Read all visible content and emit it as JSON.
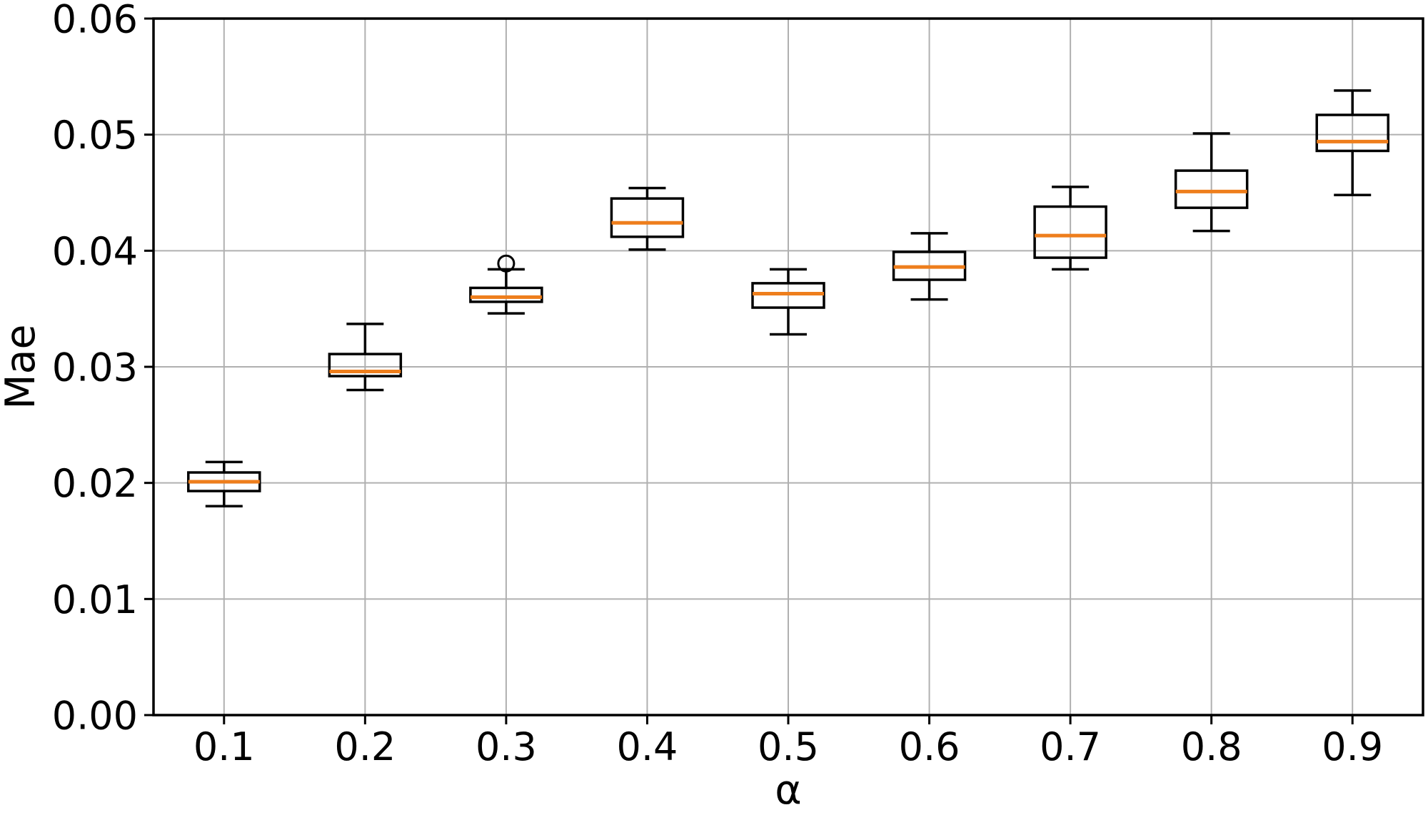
{
  "chart_data": {
    "type": "boxplot",
    "title": "",
    "xlabel": "α",
    "ylabel": "Mae",
    "categories": [
      "0.1",
      "0.2",
      "0.3",
      "0.4",
      "0.5",
      "0.6",
      "0.7",
      "0.8",
      "0.9"
    ],
    "ylim": [
      0.0,
      0.06
    ],
    "ytick_step": 0.01,
    "yticks": [
      "0.00",
      "0.01",
      "0.02",
      "0.03",
      "0.04",
      "0.05",
      "0.06"
    ],
    "grid": true,
    "legend": "none",
    "colors": {
      "median": "#ee7e1c",
      "box_line": "#000000",
      "grid": "#b0b0b0",
      "background": "#ffffff"
    },
    "boxes": [
      {
        "label": "0.1",
        "whislo": 0.018,
        "q1": 0.0193,
        "med": 0.0201,
        "q3": 0.0209,
        "whishi": 0.0218,
        "fliers": []
      },
      {
        "label": "0.2",
        "whislo": 0.028,
        "q1": 0.0292,
        "med": 0.0296,
        "q3": 0.0311,
        "whishi": 0.0337,
        "fliers": []
      },
      {
        "label": "0.3",
        "whislo": 0.0346,
        "q1": 0.0356,
        "med": 0.036,
        "q3": 0.0368,
        "whishi": 0.0384,
        "fliers": [
          0.0389
        ]
      },
      {
        "label": "0.4",
        "whislo": 0.0401,
        "q1": 0.0412,
        "med": 0.0424,
        "q3": 0.0445,
        "whishi": 0.0454,
        "fliers": []
      },
      {
        "label": "0.5",
        "whislo": 0.0328,
        "q1": 0.0351,
        "med": 0.0363,
        "q3": 0.0372,
        "whishi": 0.0384,
        "fliers": []
      },
      {
        "label": "0.6",
        "whislo": 0.0358,
        "q1": 0.0375,
        "med": 0.0386,
        "q3": 0.0399,
        "whishi": 0.0415,
        "fliers": []
      },
      {
        "label": "0.7",
        "whislo": 0.0384,
        "q1": 0.0394,
        "med": 0.0413,
        "q3": 0.0438,
        "whishi": 0.0455,
        "fliers": []
      },
      {
        "label": "0.8",
        "whislo": 0.0417,
        "q1": 0.0437,
        "med": 0.0451,
        "q3": 0.0469,
        "whishi": 0.0501,
        "fliers": []
      },
      {
        "label": "0.9",
        "whislo": 0.0448,
        "q1": 0.0486,
        "med": 0.0494,
        "q3": 0.0517,
        "whishi": 0.0538,
        "fliers": []
      }
    ]
  }
}
